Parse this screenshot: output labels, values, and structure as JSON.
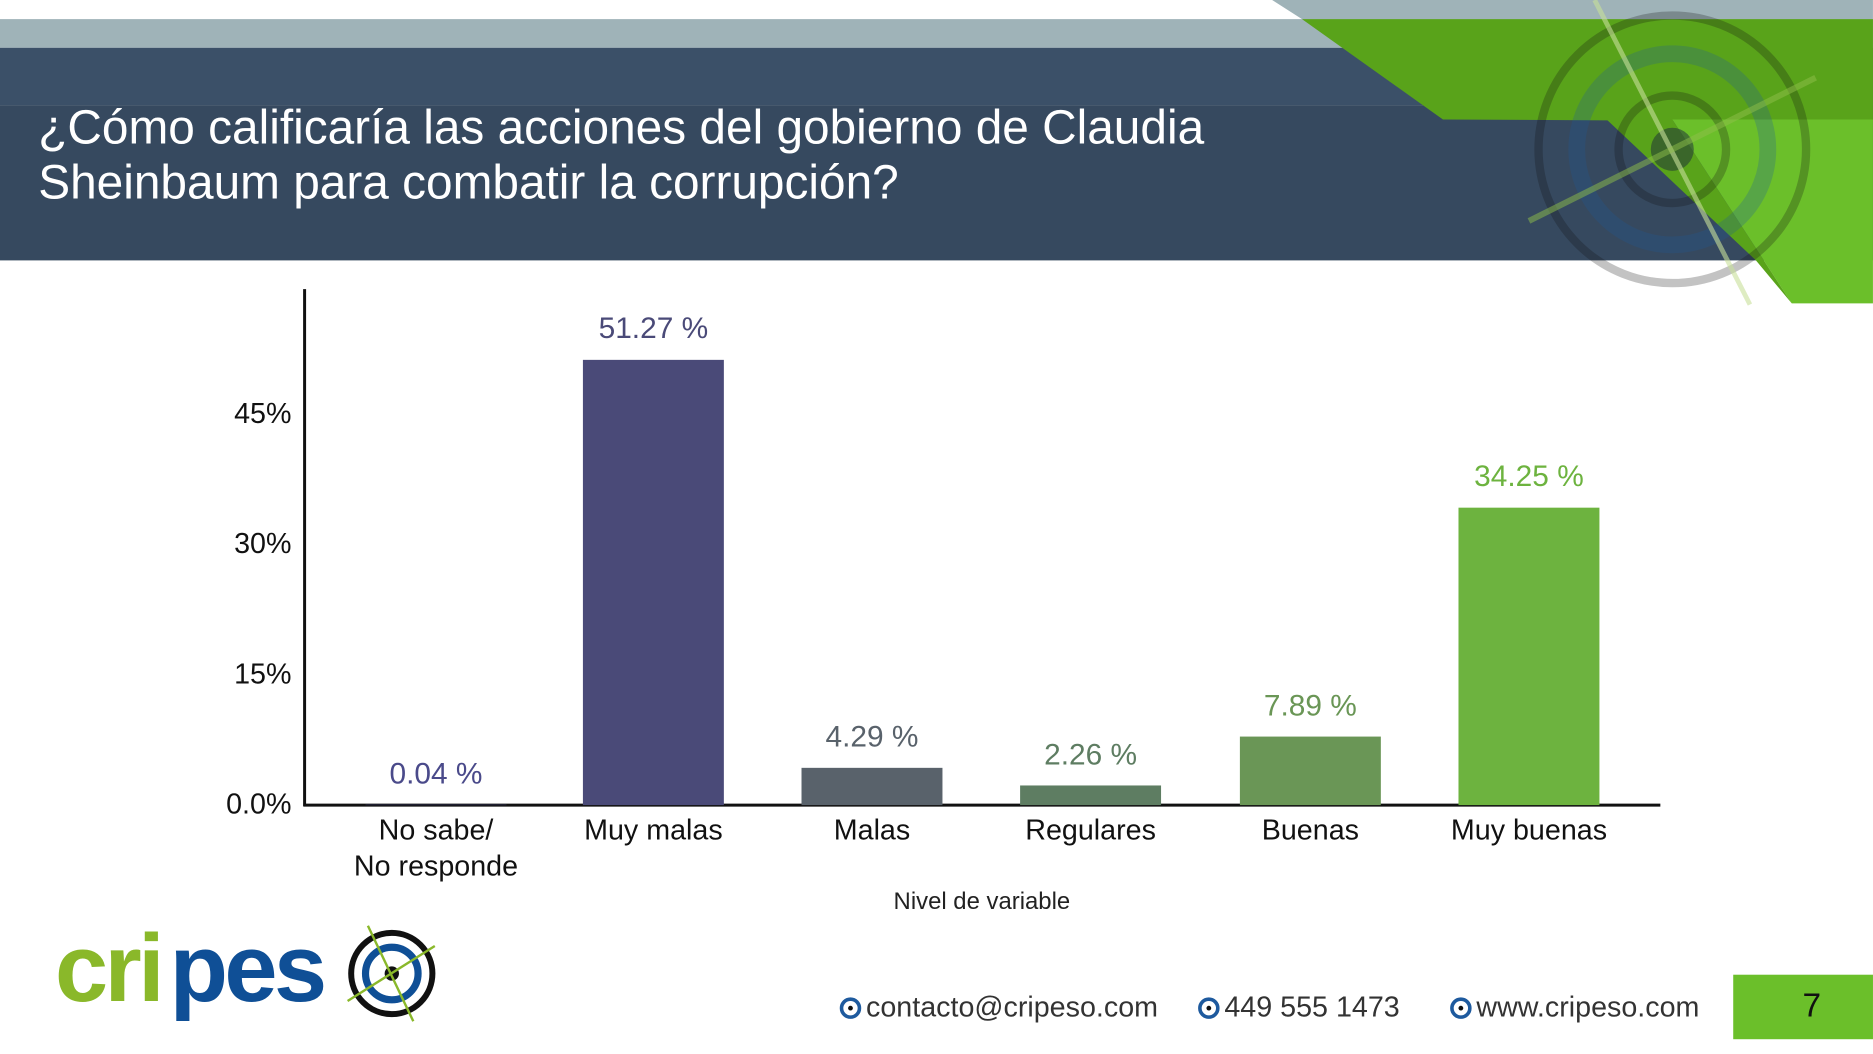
{
  "header": {
    "title": "¿Cómo calificaría las acciones del gobierno de Claudia\nSheinbaum para combatir la corrupción?"
  },
  "chart_data": {
    "type": "bar",
    "title": "¿Cómo calificaría las acciones del gobierno de Claudia Sheinbaum para combatir la corrupción?",
    "categories": [
      "No sabe/\nNo responde",
      "Muy malas",
      "Malas",
      "Regulares",
      "Buenas",
      "Muy buenas"
    ],
    "values": [
      0.04,
      51.27,
      4.29,
      2.26,
      7.89,
      34.25
    ],
    "value_labels": [
      "0.04 %",
      "51.27 %",
      "4.29 %",
      "2.26 %",
      "7.89 %",
      "34.25 %"
    ],
    "colors": [
      "#4a4a8a",
      "#4a4a78",
      "#59626b",
      "#5e7d62",
      "#6a9656",
      "#6db33f"
    ],
    "xlabel": "Nivel de variable",
    "ylabel": "",
    "yticks": [
      0,
      15,
      30,
      45
    ],
    "ytick_labels": [
      "0.0%",
      "15%",
      "30%",
      "45%"
    ],
    "ylim": [
      0,
      59
    ],
    "grid": false
  },
  "footer": {
    "logo_text": "cripeso",
    "email": "contacto@cripeso.com",
    "phone": "449 555 1473",
    "website": "www.cripeso.com",
    "page_number": "7"
  }
}
